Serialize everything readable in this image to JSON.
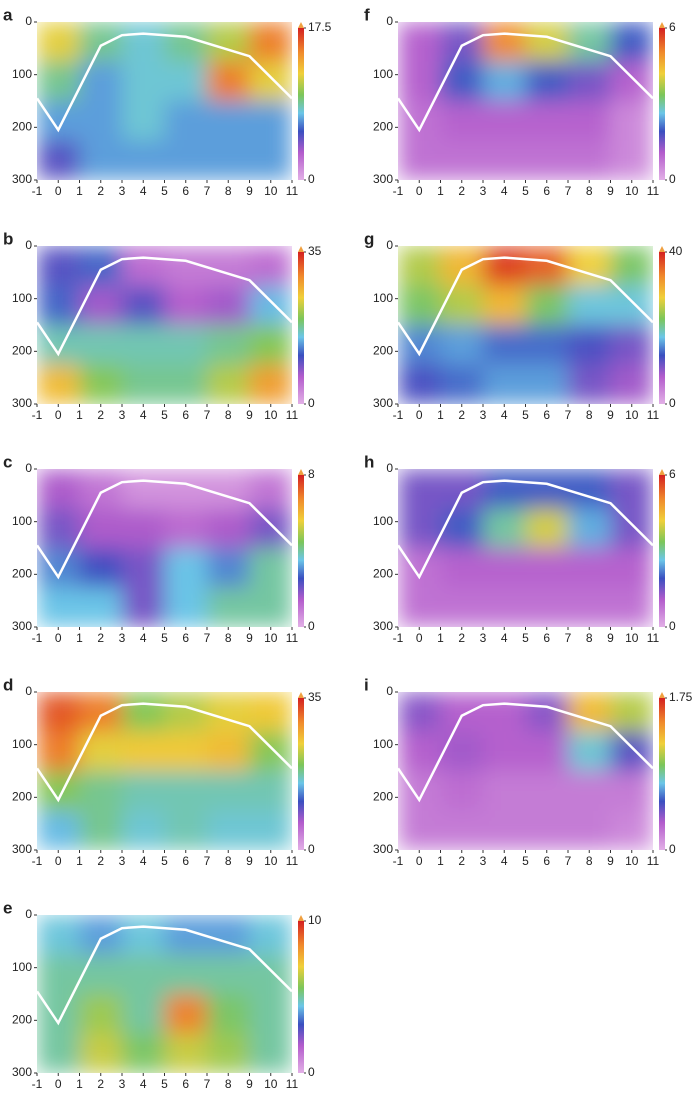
{
  "chart_data": [
    {
      "type": "heatmap",
      "label": "a",
      "x": [
        0,
        2,
        4,
        6,
        8,
        10
      ],
      "y": [
        37.5,
        112.5,
        187.5,
        262.5
      ],
      "xlim": [
        -1,
        11
      ],
      "ylim": [
        0,
        300
      ],
      "xticks": [
        -1,
        0,
        1,
        2,
        3,
        4,
        5,
        6,
        7,
        8,
        9,
        10,
        11
      ],
      "yticks": [
        0,
        100,
        200,
        300
      ],
      "zlim": [
        0,
        17.5
      ],
      "zticks": [
        0,
        17.5
      ],
      "values": [
        [
          12,
          9,
          8,
          9,
          11,
          15
        ],
        [
          9,
          7,
          8,
          8,
          15,
          12
        ],
        [
          7,
          7,
          8,
          7,
          7,
          7
        ],
        [
          5,
          7,
          7,
          7,
          7,
          7
        ]
      ],
      "outline": {
        "x": [
          -1,
          0,
          2,
          3,
          4,
          6,
          9,
          11
        ],
        "y": [
          145,
          205,
          45,
          25,
          22,
          28,
          65,
          145
        ]
      }
    },
    {
      "type": "heatmap",
      "label": "b",
      "x": [
        0,
        2,
        4,
        6,
        8,
        10
      ],
      "y": [
        37.5,
        112.5,
        187.5,
        262.5
      ],
      "xlim": [
        -1,
        11
      ],
      "ylim": [
        0,
        300
      ],
      "xticks": [
        -1,
        0,
        1,
        2,
        3,
        4,
        5,
        6,
        7,
        8,
        9,
        10,
        11
      ],
      "yticks": [
        0,
        100,
        200,
        300
      ],
      "zlim": [
        0,
        35
      ],
      "zticks": [
        0,
        35
      ],
      "values": [
        [
          10,
          12,
          5,
          4,
          4,
          5
        ],
        [
          12,
          7,
          10,
          6,
          7,
          15
        ],
        [
          17,
          17,
          17,
          17,
          18,
          20
        ],
        [
          26,
          20,
          18,
          18,
          22,
          28
        ]
      ],
      "outline": {
        "x": [
          -1,
          0,
          2,
          3,
          4,
          6,
          9,
          11
        ],
        "y": [
          145,
          205,
          45,
          25,
          22,
          28,
          65,
          145
        ]
      }
    },
    {
      "type": "heatmap",
      "label": "c",
      "x": [
        0,
        2,
        4,
        6,
        8,
        10
      ],
      "y": [
        37.5,
        112.5,
        187.5,
        262.5
      ],
      "xlim": [
        -1,
        11
      ],
      "ylim": [
        0,
        300
      ],
      "xticks": [
        -1,
        0,
        1,
        2,
        3,
        4,
        5,
        6,
        7,
        8,
        9,
        10,
        11
      ],
      "yticks": [
        0,
        100,
        200,
        300
      ],
      "zlim": [
        0,
        8
      ],
      "zticks": [
        0,
        8
      ],
      "values": [
        [
          1.5,
          1,
          0.5,
          0.5,
          0.5,
          1
        ],
        [
          2,
          1.5,
          1.5,
          1.2,
          1.5,
          2
        ],
        [
          3,
          2.5,
          2,
          3.5,
          3,
          4
        ],
        [
          3.5,
          3.5,
          2,
          3.5,
          4,
          4
        ]
      ],
      "outline": {
        "x": [
          -1,
          0,
          2,
          3,
          4,
          6,
          9,
          11
        ],
        "y": [
          145,
          205,
          45,
          25,
          22,
          28,
          65,
          145
        ]
      }
    },
    {
      "type": "heatmap",
      "label": "d",
      "x": [
        0,
        2,
        4,
        6,
        8,
        10
      ],
      "y": [
        37.5,
        112.5,
        187.5,
        262.5
      ],
      "xlim": [
        -1,
        11
      ],
      "ylim": [
        0,
        300
      ],
      "xticks": [
        -1,
        0,
        1,
        2,
        3,
        4,
        5,
        6,
        7,
        8,
        9,
        10,
        11
      ],
      "yticks": [
        0,
        100,
        200,
        300
      ],
      "zlim": [
        0,
        35
      ],
      "zticks": [
        0,
        35
      ],
      "values": [
        [
          32,
          30,
          20,
          22,
          24,
          25
        ],
        [
          30,
          24,
          25,
          25,
          26,
          20
        ],
        [
          20,
          18,
          17,
          17,
          17,
          17
        ],
        [
          15,
          18,
          16,
          17,
          16,
          16
        ]
      ],
      "outline": {
        "x": [
          -1,
          0,
          2,
          3,
          4,
          6,
          9,
          11
        ],
        "y": [
          145,
          205,
          45,
          25,
          22,
          28,
          65,
          145
        ]
      }
    },
    {
      "type": "heatmap",
      "label": "e",
      "x": [
        0,
        2,
        4,
        6,
        8,
        10
      ],
      "y": [
        37.5,
        112.5,
        187.5,
        262.5
      ],
      "xlim": [
        -1,
        11
      ],
      "ylim": [
        0,
        300
      ],
      "xticks": [
        -1,
        0,
        1,
        2,
        3,
        4,
        5,
        6,
        7,
        8,
        9,
        10,
        11
      ],
      "yticks": [
        0,
        100,
        200,
        300
      ],
      "zlim": [
        0,
        10
      ],
      "zticks": [
        0,
        10
      ],
      "values": [
        [
          4.5,
          4,
          4.5,
          4,
          4,
          4.5
        ],
        [
          5,
          5,
          5,
          5,
          5,
          5
        ],
        [
          5,
          6,
          5,
          8.5,
          5.5,
          5
        ],
        [
          5,
          6.5,
          5.5,
          6.5,
          6,
          5
        ]
      ],
      "outline": {
        "x": [
          -1,
          0,
          2,
          3,
          4,
          6,
          9,
          11
        ],
        "y": [
          145,
          205,
          45,
          25,
          22,
          28,
          65,
          145
        ]
      }
    },
    {
      "type": "heatmap",
      "label": "f",
      "x": [
        0,
        2,
        4,
        6,
        8,
        10
      ],
      "y": [
        37.5,
        112.5,
        187.5,
        262.5
      ],
      "xlim": [
        -1,
        11
      ],
      "ylim": [
        0,
        300
      ],
      "xticks": [
        -1,
        0,
        1,
        2,
        3,
        4,
        5,
        6,
        7,
        8,
        9,
        10,
        11
      ],
      "yticks": [
        0,
        100,
        200,
        300
      ],
      "zlim": [
        0,
        6
      ],
      "zticks": [
        0,
        6
      ],
      "values": [
        [
          1,
          1.5,
          5,
          4,
          3,
          2
        ],
        [
          1,
          2,
          2.5,
          2,
          1.5,
          1
        ],
        [
          0.8,
          1,
          1,
          1,
          1,
          0.5
        ],
        [
          0.8,
          0.8,
          0.8,
          0.8,
          0.8,
          0.5
        ]
      ],
      "outline": {
        "x": [
          -1,
          0,
          2,
          3,
          4,
          6,
          9,
          11
        ],
        "y": [
          145,
          205,
          45,
          25,
          22,
          28,
          65,
          145
        ]
      }
    },
    {
      "type": "heatmap",
      "label": "g",
      "x": [
        0,
        2,
        4,
        6,
        8,
        10
      ],
      "y": [
        37.5,
        112.5,
        187.5,
        262.5
      ],
      "xlim": [
        -1,
        11
      ],
      "ylim": [
        0,
        300
      ],
      "xticks": [
        -1,
        0,
        1,
        2,
        3,
        4,
        5,
        6,
        7,
        8,
        9,
        10,
        11
      ],
      "yticks": [
        0,
        100,
        200,
        300
      ],
      "zlim": [
        0,
        40
      ],
      "zticks": [
        0,
        40
      ],
      "values": [
        [
          25,
          30,
          38,
          36,
          28,
          22
        ],
        [
          22,
          25,
          30,
          22,
          18,
          18
        ],
        [
          15,
          16,
          14,
          14,
          12,
          10
        ],
        [
          12,
          14,
          16,
          16,
          10,
          8
        ]
      ],
      "outline": {
        "x": [
          -1,
          0,
          2,
          3,
          4,
          6,
          9,
          11
        ],
        "y": [
          145,
          205,
          45,
          25,
          22,
          28,
          65,
          145
        ]
      }
    },
    {
      "type": "heatmap",
      "label": "h",
      "x": [
        0,
        2,
        4,
        6,
        8,
        10
      ],
      "y": [
        37.5,
        112.5,
        187.5,
        262.5
      ],
      "xlim": [
        -1,
        11
      ],
      "ylim": [
        0,
        300
      ],
      "xticks": [
        -1,
        0,
        1,
        2,
        3,
        4,
        5,
        6,
        7,
        8,
        9,
        10,
        11
      ],
      "yticks": [
        0,
        100,
        200,
        300
      ],
      "zlim": [
        0,
        6
      ],
      "zticks": [
        0,
        6
      ],
      "values": [
        [
          1.5,
          1.5,
          2,
          2,
          2,
          1.5
        ],
        [
          1.5,
          2,
          3,
          4,
          2.5,
          1.5
        ],
        [
          0.8,
          1,
          1,
          1,
          1,
          1
        ],
        [
          0.8,
          0.8,
          0.8,
          0.8,
          0.8,
          0.8
        ]
      ],
      "outline": {
        "x": [
          -1,
          0,
          2,
          3,
          4,
          6,
          9,
          11
        ],
        "y": [
          145,
          205,
          45,
          25,
          22,
          28,
          65,
          145
        ]
      }
    },
    {
      "type": "heatmap",
      "label": "i",
      "x": [
        0,
        2,
        4,
        6,
        8,
        10
      ],
      "y": [
        37.5,
        112.5,
        187.5,
        262.5
      ],
      "xlim": [
        -1,
        11
      ],
      "ylim": [
        0,
        300
      ],
      "xticks": [
        -1,
        0,
        1,
        2,
        3,
        4,
        5,
        6,
        7,
        8,
        9,
        10,
        11
      ],
      "yticks": [
        0,
        100,
        200,
        300
      ],
      "zlim": [
        0,
        1.75
      ],
      "zticks": [
        0,
        1.75
      ],
      "values": [
        [
          0.4,
          0.3,
          0.3,
          0.4,
          1.3,
          1.1
        ],
        [
          0.3,
          0.35,
          0.3,
          0.3,
          0.8,
          0.5
        ],
        [
          0.2,
          0.25,
          0.2,
          0.2,
          0.2,
          0.2
        ],
        [
          0.2,
          0.2,
          0.2,
          0.2,
          0.2,
          0.15
        ]
      ],
      "outline": {
        "x": [
          -1,
          0,
          2,
          3,
          4,
          6,
          9,
          11
        ],
        "y": [
          145,
          205,
          45,
          25,
          22,
          28,
          65,
          145
        ]
      }
    }
  ]
}
